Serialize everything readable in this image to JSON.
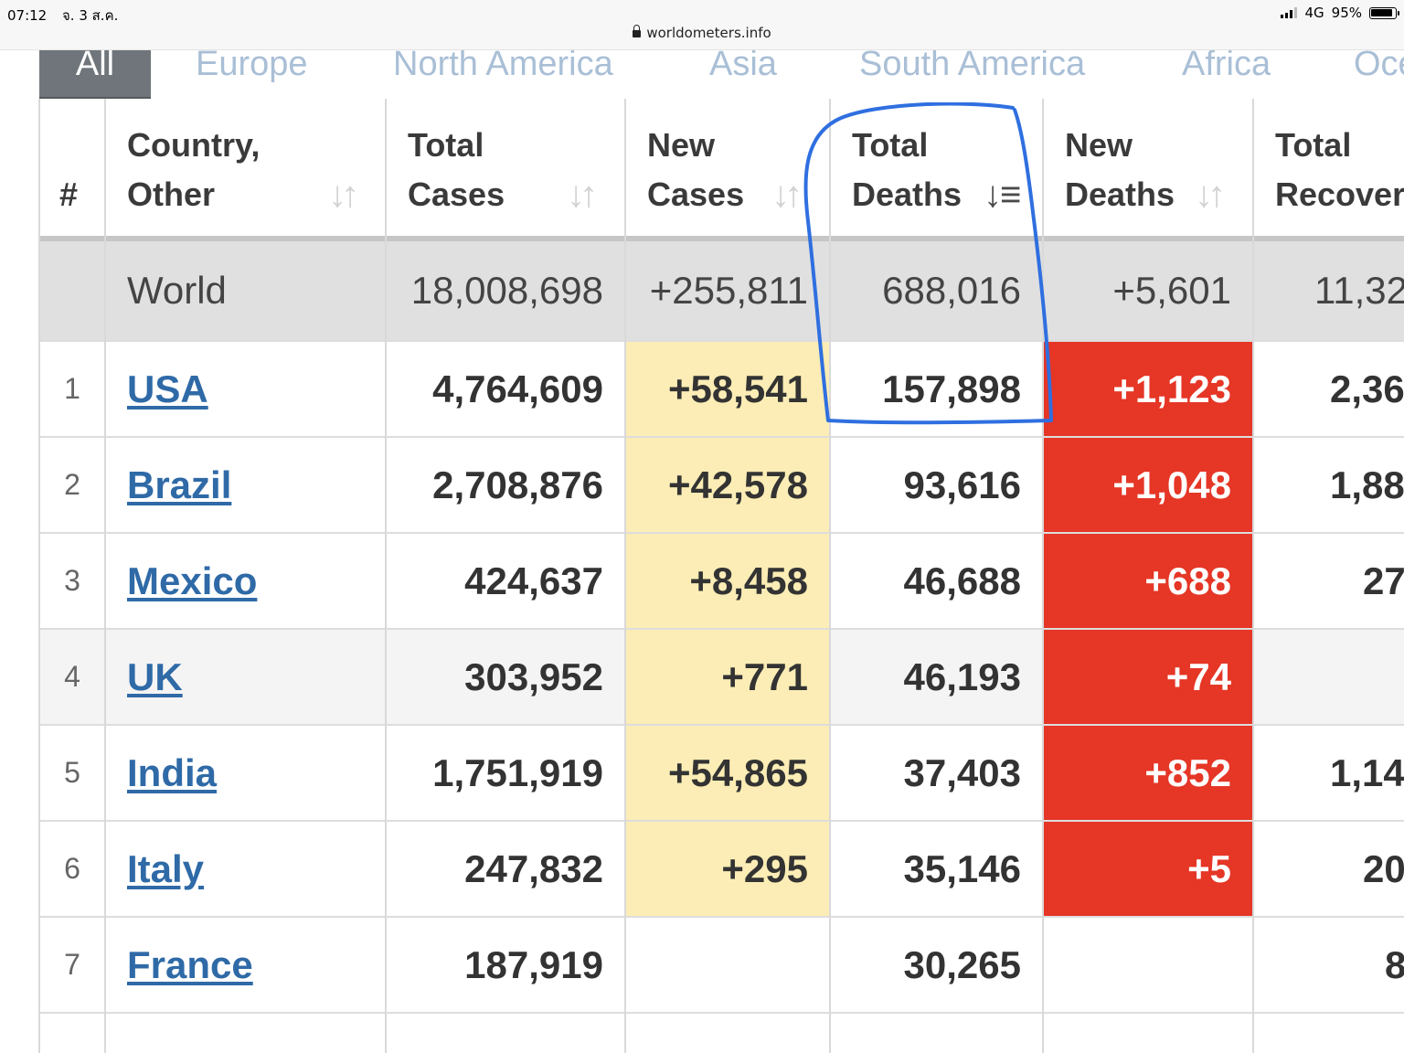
{
  "status_bar": {
    "time": "07:12",
    "date": "จ. 3 ส.ค.",
    "network": "4G",
    "battery": "95%",
    "url": "worldometers.info"
  },
  "region_tabs": [
    {
      "label": "All",
      "active": true
    },
    {
      "label": "Europe",
      "active": false
    },
    {
      "label": "North America",
      "active": false
    },
    {
      "label": "Asia",
      "active": false
    },
    {
      "label": "South America",
      "active": false
    },
    {
      "label": "Africa",
      "active": false
    },
    {
      "label": "Oce",
      "active": false
    }
  ],
  "table": {
    "headers": {
      "rank": "#",
      "country_l1": "Country,",
      "country_l2": "Other",
      "total_cases_l1": "Total",
      "total_cases_l2": "Cases",
      "new_cases_l1": "New",
      "new_cases_l2": "Cases",
      "total_deaths_l1": "Total",
      "total_deaths_l2": "Deaths",
      "new_deaths_l1": "New",
      "new_deaths_l2": "Deaths",
      "total_recovered_l1": "Total",
      "total_recovered_l2": "Recover"
    },
    "sorted_column": "Total Deaths",
    "world": {
      "country": "World",
      "total_cases": "18,008,698",
      "new_cases": "+255,811",
      "total_deaths": "688,016",
      "new_deaths": "+5,601",
      "total_recovered": "11,32"
    },
    "rows": [
      {
        "rank": "1",
        "country": "USA",
        "total_cases": "4,764,609",
        "new_cases": "+58,541",
        "total_deaths": "157,898",
        "new_deaths": "+1,123",
        "total_recovered": "2,36"
      },
      {
        "rank": "2",
        "country": "Brazil",
        "total_cases": "2,708,876",
        "new_cases": "+42,578",
        "total_deaths": "93,616",
        "new_deaths": "+1,048",
        "total_recovered": "1,88"
      },
      {
        "rank": "3",
        "country": "Mexico",
        "total_cases": "424,637",
        "new_cases": "+8,458",
        "total_deaths": "46,688",
        "new_deaths": "+688",
        "total_recovered": "27"
      },
      {
        "rank": "4",
        "country": "UK",
        "total_cases": "303,952",
        "new_cases": "+771",
        "total_deaths": "46,193",
        "new_deaths": "+74",
        "total_recovered": ""
      },
      {
        "rank": "5",
        "country": "India",
        "total_cases": "1,751,919",
        "new_cases": "+54,865",
        "total_deaths": "37,403",
        "new_deaths": "+852",
        "total_recovered": "1,14"
      },
      {
        "rank": "6",
        "country": "Italy",
        "total_cases": "247,832",
        "new_cases": "+295",
        "total_deaths": "35,146",
        "new_deaths": "+5",
        "total_recovered": "20"
      },
      {
        "rank": "7",
        "country": "France",
        "total_cases": "187,919",
        "new_cases": "",
        "total_deaths": "30,265",
        "new_deaths": "",
        "total_recovered": "8"
      }
    ]
  },
  "colors": {
    "new_cases_bg": "#fbedb5",
    "new_deaths_bg": "#e53626",
    "link": "#2f6aa7",
    "annotation": "#2f6fe0"
  }
}
